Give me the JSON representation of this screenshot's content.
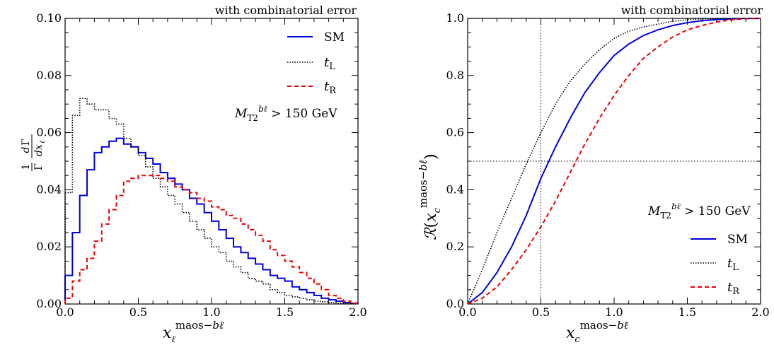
{
  "chart_data": [
    {
      "type": "line",
      "subtype": "step-histogram",
      "annotation": "with combinatorial error",
      "xlabel": "x_ℓ^{maos−bℓ}",
      "ylabel": "1/Γ dΓ/dx_ℓ",
      "xlim": [
        0.0,
        2.0
      ],
      "ylim": [
        0.0,
        0.1
      ],
      "x_ticks": [
        "0.0",
        "0.5",
        "1.0",
        "1.5",
        "2.0"
      ],
      "y_ticks": [
        "0.00",
        "0.02",
        "0.04",
        "0.06",
        "0.08",
        "0.10"
      ],
      "cut_label": "M_T2^{bℓ} > 150 GeV",
      "legend_position": "top-right",
      "bin_width": 0.05,
      "series": [
        {
          "name": "SM",
          "color": "#0000dd",
          "dash": "solid",
          "values": [
            0.01,
            0.025,
            0.038,
            0.047,
            0.053,
            0.055,
            0.057,
            0.058,
            0.056,
            0.055,
            0.053,
            0.051,
            0.049,
            0.046,
            0.044,
            0.042,
            0.04,
            0.037,
            0.035,
            0.032,
            0.029,
            0.026,
            0.023,
            0.02,
            0.018,
            0.016,
            0.014,
            0.012,
            0.01,
            0.009,
            0.008,
            0.006,
            0.005,
            0.004,
            0.003,
            0.002,
            0.0015,
            0.001,
            0.0005,
            0.0002
          ]
        },
        {
          "name": "t_L",
          "color": "#000000",
          "dash": "dotted",
          "values": [
            0.039,
            0.066,
            0.072,
            0.07,
            0.068,
            0.068,
            0.065,
            0.063,
            0.058,
            0.055,
            0.052,
            0.048,
            0.044,
            0.041,
            0.038,
            0.035,
            0.032,
            0.029,
            0.026,
            0.023,
            0.02,
            0.018,
            0.015,
            0.013,
            0.011,
            0.009,
            0.008,
            0.007,
            0.005,
            0.004,
            0.003,
            0.0025,
            0.002,
            0.0015,
            0.001,
            0.0008,
            0.0005,
            0.0003,
            0.0002,
            0.0001
          ]
        },
        {
          "name": "t_R",
          "color": "#ee0000",
          "dash": "dashed",
          "values": [
            0.002,
            0.008,
            0.012,
            0.016,
            0.022,
            0.028,
            0.033,
            0.038,
            0.043,
            0.044,
            0.045,
            0.045,
            0.045,
            0.044,
            0.043,
            0.041,
            0.04,
            0.039,
            0.037,
            0.036,
            0.034,
            0.033,
            0.031,
            0.03,
            0.028,
            0.026,
            0.024,
            0.022,
            0.019,
            0.017,
            0.015,
            0.013,
            0.011,
            0.009,
            0.007,
            0.005,
            0.003,
            0.002,
            0.001,
            0.0003
          ]
        }
      ]
    },
    {
      "type": "line",
      "annotation": "with combinatorial error",
      "xlabel": "x_c^{maos−bℓ}",
      "ylabel": "R(x_c^{maos−bℓ})",
      "xlim": [
        0.0,
        2.0
      ],
      "ylim": [
        0.0,
        1.0
      ],
      "x_ticks": [
        "0.0",
        "0.5",
        "1.0",
        "1.5",
        "2.0"
      ],
      "y_ticks": [
        "0.0",
        "0.2",
        "0.4",
        "0.6",
        "0.8",
        "1.0"
      ],
      "cut_label": "M_T2^{bℓ} > 150 GeV",
      "legend_position": "bottom-right",
      "reference_lines": {
        "x": 0.5,
        "y": 0.5
      },
      "x": [
        0.0,
        0.1,
        0.2,
        0.3,
        0.4,
        0.5,
        0.6,
        0.7,
        0.8,
        0.9,
        1.0,
        1.1,
        1.2,
        1.3,
        1.4,
        1.5,
        1.6,
        1.7,
        1.8,
        1.9,
        2.0
      ],
      "series": [
        {
          "name": "SM",
          "color": "#0000dd",
          "dash": "solid",
          "values": [
            0.0,
            0.04,
            0.11,
            0.2,
            0.31,
            0.44,
            0.55,
            0.65,
            0.74,
            0.81,
            0.87,
            0.91,
            0.94,
            0.96,
            0.975,
            0.985,
            0.992,
            0.996,
            0.998,
            1.0,
            1.0
          ]
        },
        {
          "name": "t_L",
          "color": "#000000",
          "dash": "dotted",
          "values": [
            0.0,
            0.12,
            0.25,
            0.37,
            0.49,
            0.6,
            0.7,
            0.78,
            0.84,
            0.89,
            0.93,
            0.955,
            0.97,
            0.98,
            0.99,
            0.995,
            0.998,
            0.999,
            1.0,
            1.0,
            1.0
          ]
        },
        {
          "name": "t_R",
          "color": "#ee0000",
          "dash": "dashed",
          "values": [
            0.0,
            0.02,
            0.06,
            0.12,
            0.19,
            0.27,
            0.36,
            0.46,
            0.56,
            0.65,
            0.73,
            0.8,
            0.86,
            0.9,
            0.935,
            0.96,
            0.975,
            0.987,
            0.995,
            0.999,
            1.0
          ]
        }
      ]
    }
  ]
}
